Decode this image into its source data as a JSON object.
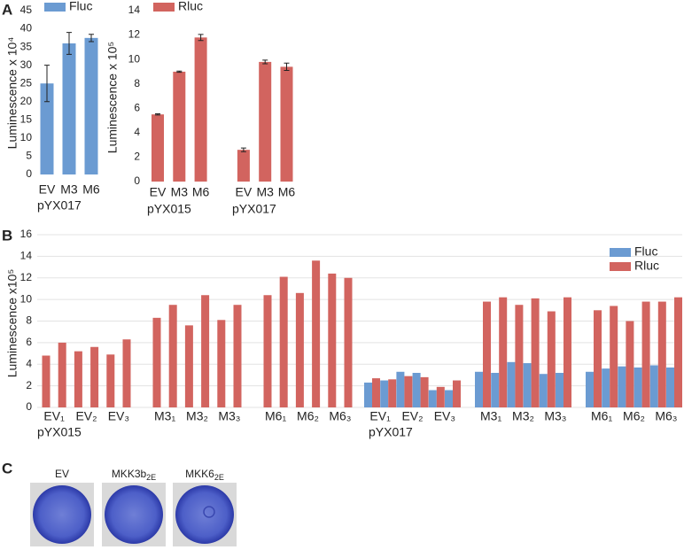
{
  "panel_labels": [
    "A",
    "B",
    "C"
  ],
  "chart_data": [
    {
      "type": "bar",
      "y_label": "Luminescence x 10⁴",
      "categories": [
        "EV",
        "M3",
        "M6"
      ],
      "groups": [
        "pYX017"
      ],
      "series": [
        {
          "name": "Fluc",
          "color": "#6b9bd2",
          "values": [
            25,
            36,
            37.5
          ],
          "errors": [
            5,
            3,
            1
          ]
        }
      ],
      "ylim": [
        0,
        45
      ],
      "yticks": [
        0,
        5,
        10,
        15,
        20,
        25,
        30,
        35,
        40,
        45
      ],
      "grid": false
    },
    {
      "type": "bar",
      "y_label": "Luminescence x 10⁵",
      "categories": [
        "EV",
        "M3",
        "M6",
        "EV",
        "M3",
        "M6"
      ],
      "groups": [
        "pYX015",
        "pYX017"
      ],
      "series": [
        {
          "name": "Rluc",
          "color": "#d2645f",
          "values": [
            5.5,
            9,
            11.8,
            2.6,
            9.8,
            9.4
          ],
          "errors": [
            0.05,
            0.05,
            0.25,
            0.15,
            0.15,
            0.3
          ]
        }
      ],
      "ylim": [
        0,
        14
      ],
      "yticks": [
        0,
        2,
        4,
        6,
        8,
        10,
        12,
        14
      ],
      "grid": false
    },
    {
      "type": "bar",
      "y_label": "Luminescence x10⁵",
      "categories": [
        "EV₁",
        null,
        "EV₂",
        null,
        "EV₃",
        null,
        "M3₁",
        null,
        "M3₂",
        null,
        "M3₃",
        null,
        "M6₁",
        null,
        "M6₂",
        null,
        "M6₃",
        null,
        "EV₁",
        null,
        "EV₂",
        null,
        "EV₃",
        null,
        "M3₁",
        null,
        "M3₂",
        null,
        "M3₃",
        null,
        "M6₁",
        null,
        "M6₂",
        null,
        "M6₃",
        null
      ],
      "groups": [
        "pYX015",
        "pYX017"
      ],
      "series": [
        {
          "name": "Fluc",
          "color": "#6b9bd2",
          "values": [
            null,
            null,
            null,
            null,
            null,
            null,
            null,
            null,
            null,
            null,
            null,
            null,
            null,
            null,
            null,
            null,
            null,
            null,
            2.3,
            2.5,
            3.3,
            3.2,
            1.6,
            1.6,
            3.3,
            3.2,
            4.2,
            4.1,
            3.1,
            3.2,
            3.3,
            3.6,
            3.8,
            3.7,
            3.9,
            3.7
          ]
        },
        {
          "name": "Rluc",
          "color": "#d2645f",
          "values": [
            4.8,
            6.0,
            5.2,
            5.6,
            4.9,
            6.3,
            8.3,
            9.5,
            7.6,
            10.4,
            8.1,
            9.5,
            10.4,
            12.1,
            10.6,
            13.6,
            12.4,
            12.0,
            2.7,
            2.6,
            2.9,
            2.8,
            1.9,
            2.5,
            9.8,
            10.2,
            9.5,
            10.1,
            8.9,
            10.2,
            9.0,
            9.4,
            8.0,
            9.8,
            9.8,
            10.2
          ]
        }
      ],
      "ylim": [
        0,
        16
      ],
      "yticks": [
        0,
        2,
        4,
        6,
        8,
        10,
        12,
        14,
        16
      ],
      "grid": true
    }
  ],
  "panel_c": {
    "labels": [
      {
        "main": "EV",
        "sub": null
      },
      {
        "main": "MKK3b",
        "sub": "2E"
      },
      {
        "main": "MKK6",
        "sub": "2E"
      }
    ]
  }
}
